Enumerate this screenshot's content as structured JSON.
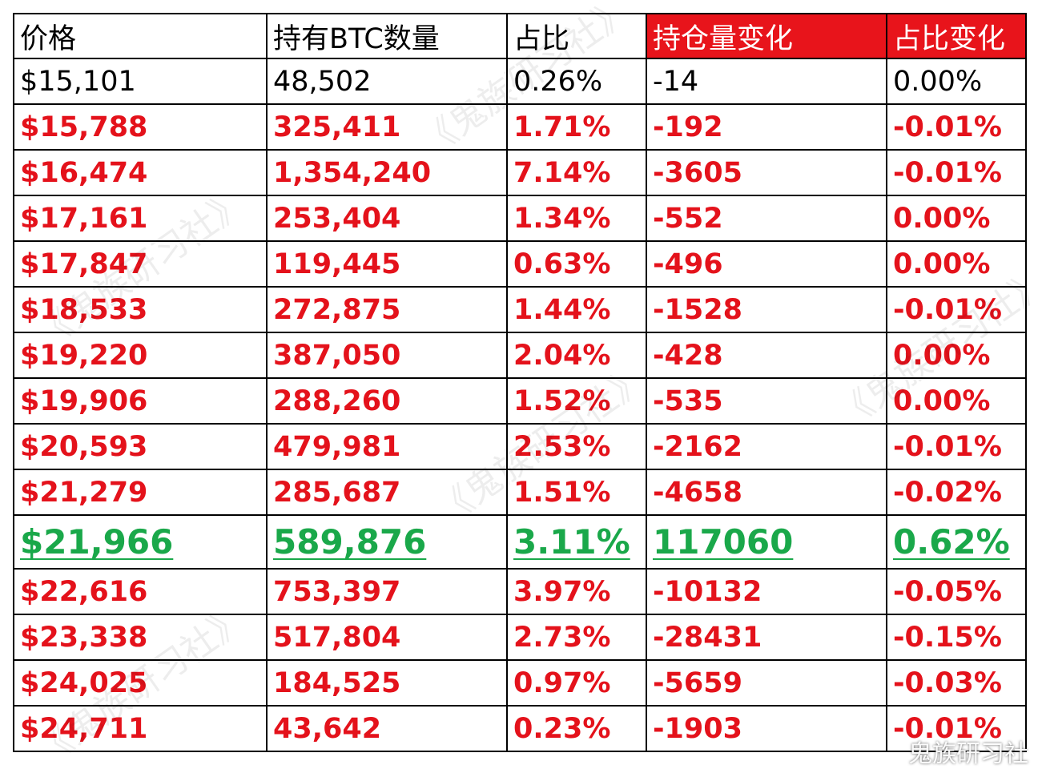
{
  "table": {
    "header": [
      "价格",
      "持有BTC数量",
      "占比",
      "持仓量变化",
      "占比变化"
    ],
    "rows": [
      [
        "$15,101",
        "48,502",
        "0.26%",
        "-14",
        "0.00%"
      ],
      [
        "$15,788",
        "325,411",
        "1.71%",
        "-192",
        "-0.01%"
      ],
      [
        "$16,474",
        "1,354,240",
        "7.14%",
        "-3605",
        "-0.01%"
      ],
      [
        "$17,161",
        "253,404",
        "1.34%",
        "-552",
        "0.00%"
      ],
      [
        "$17,847",
        "119,445",
        "0.63%",
        "-496",
        "0.00%"
      ],
      [
        "$18,533",
        "272,875",
        "1.44%",
        "-1528",
        "-0.01%"
      ],
      [
        "$19,220",
        "387,050",
        "2.04%",
        "-428",
        "0.00%"
      ],
      [
        "$19,906",
        "288,260",
        "1.52%",
        "-535",
        "0.00%"
      ],
      [
        "$20,593",
        "479,981",
        "2.53%",
        "-2162",
        "-0.01%"
      ],
      [
        "$21,279",
        "285,687",
        "1.51%",
        "-4658",
        "-0.02%"
      ],
      [
        "$21,966",
        "589,876",
        "3.11%",
        "117060",
        "0.62%"
      ],
      [
        "$22,616",
        "753,397",
        "3.97%",
        "-10132",
        "-0.05%"
      ],
      [
        "$23,338",
        "517,804",
        "2.73%",
        "-28431",
        "-0.15%"
      ],
      [
        "$24,025",
        "184,525",
        "0.97%",
        "-5659",
        "-0.03%"
      ],
      [
        "$24,711",
        "43,642",
        "0.23%",
        "-1903",
        "-0.01%"
      ]
    ]
  },
  "watermark": "《鬼族研习社》",
  "credit": "鬼族研习社"
}
